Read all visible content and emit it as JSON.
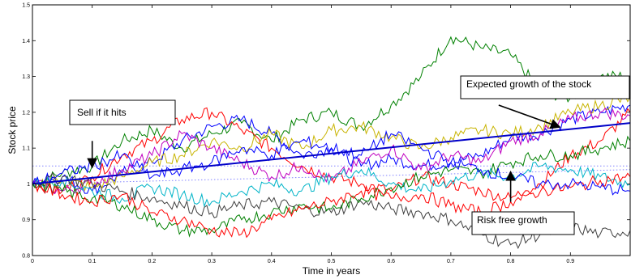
{
  "chart_data": {
    "type": "line",
    "xlabel": "Time in years",
    "ylabel": "Stock price",
    "xlim": [
      0,
      1
    ],
    "ylim": [
      0.8,
      1.5
    ],
    "xticks": [
      "0",
      "0.1",
      "0.2",
      "0.3",
      "0.4",
      "0.5",
      "0.6",
      "0.7",
      "0.8",
      "0.9"
    ],
    "yticks": [
      "0.8",
      "0.9",
      "1",
      "1.1",
      "1.2",
      "1.3",
      "1.4",
      "1.5"
    ],
    "grid": false,
    "series": [
      {
        "color": "#008000",
        "x": [
          0,
          0.05,
          0.1,
          0.15,
          0.2,
          0.25,
          0.3,
          0.35,
          0.4,
          0.45,
          0.5,
          0.55,
          0.6,
          0.65,
          0.7,
          0.75,
          0.8,
          0.85,
          0.9,
          0.95,
          1.0
        ],
        "values": [
          1.0,
          1.03,
          1.05,
          1.12,
          1.15,
          1.1,
          1.14,
          1.17,
          1.12,
          1.18,
          1.2,
          1.16,
          1.22,
          1.3,
          1.41,
          1.38,
          1.36,
          1.26,
          1.24,
          1.3,
          1.3
        ]
      },
      {
        "color": "#0000ff",
        "x": [
          0,
          0.05,
          0.1,
          0.15,
          0.2,
          0.25,
          0.3,
          0.35,
          0.4,
          0.45,
          0.5,
          0.55,
          0.6,
          0.65,
          0.7,
          0.75,
          0.8,
          0.85,
          0.9,
          0.95,
          1.0
        ],
        "values": [
          1.0,
          1.02,
          0.98,
          1.03,
          1.06,
          1.12,
          1.16,
          1.18,
          1.14,
          1.08,
          1.1,
          1.05,
          1.07,
          1.05,
          1.06,
          1.08,
          1.13,
          1.14,
          1.18,
          1.2,
          1.22
        ]
      },
      {
        "color": "#ff0000",
        "x": [
          0,
          0.05,
          0.1,
          0.15,
          0.2,
          0.25,
          0.3,
          0.35,
          0.4,
          0.45,
          0.5,
          0.55,
          0.6,
          0.65,
          0.7,
          0.75,
          0.8,
          0.85,
          0.9,
          0.95,
          1.0
        ],
        "values": [
          1.0,
          0.98,
          1.02,
          1.08,
          1.12,
          1.18,
          1.2,
          1.15,
          1.1,
          1.05,
          1.02,
          1.0,
          0.98,
          1.02,
          1.0,
          0.98,
          0.96,
          1.0,
          1.08,
          1.12,
          1.2
        ]
      },
      {
        "color": "#c8b400",
        "x": [
          0,
          0.05,
          0.1,
          0.15,
          0.2,
          0.25,
          0.3,
          0.35,
          0.4,
          0.45,
          0.5,
          0.55,
          0.6,
          0.65,
          0.7,
          0.75,
          0.8,
          0.85,
          0.9,
          0.95,
          1.0
        ],
        "values": [
          1.0,
          1.01,
          0.99,
          1.02,
          1.06,
          1.08,
          1.12,
          1.1,
          1.14,
          1.1,
          1.15,
          1.16,
          1.13,
          1.1,
          1.13,
          1.15,
          1.14,
          1.16,
          1.2,
          1.22,
          1.24
        ]
      },
      {
        "color": "#c000c0",
        "x": [
          0,
          0.05,
          0.1,
          0.15,
          0.2,
          0.25,
          0.3,
          0.35,
          0.4,
          0.45,
          0.5,
          0.55,
          0.6,
          0.65,
          0.7,
          0.75,
          0.8,
          0.85,
          0.9,
          0.95,
          1.0
        ],
        "values": [
          1.0,
          0.98,
          1.0,
          1.04,
          1.08,
          1.14,
          1.1,
          1.06,
          1.02,
          1.05,
          1.01,
          1.06,
          1.1,
          1.04,
          1.08,
          1.06,
          1.12,
          1.14,
          1.18,
          1.2,
          1.19
        ]
      },
      {
        "color": "#00b4c8",
        "x": [
          0,
          0.05,
          0.1,
          0.15,
          0.2,
          0.25,
          0.3,
          0.35,
          0.4,
          0.45,
          0.5,
          0.55,
          0.6,
          0.65,
          0.7,
          0.75,
          0.8,
          0.85,
          0.9,
          0.95,
          1.0
        ],
        "values": [
          1.0,
          1.01,
          0.98,
          0.96,
          0.99,
          0.97,
          0.95,
          0.98,
          1.0,
          0.98,
          1.02,
          1.04,
          1.0,
          0.98,
          1.01,
          1.03,
          1.02,
          1.05,
          1.04,
          1.02,
          1.0
        ]
      },
      {
        "color": "#404040",
        "x": [
          0,
          0.05,
          0.1,
          0.15,
          0.2,
          0.25,
          0.3,
          0.35,
          0.4,
          0.45,
          0.5,
          0.55,
          0.6,
          0.65,
          0.7,
          0.75,
          0.8,
          0.85,
          0.9,
          0.95,
          1.0
        ],
        "values": [
          1.0,
          1.02,
          1.0,
          0.98,
          0.96,
          0.94,
          0.92,
          0.94,
          0.95,
          0.93,
          0.92,
          0.95,
          0.93,
          0.92,
          0.9,
          0.86,
          0.83,
          0.86,
          0.88,
          0.86,
          0.87
        ]
      },
      {
        "color": "#008000",
        "x": [
          0,
          0.05,
          0.1,
          0.15,
          0.2,
          0.25,
          0.3,
          0.35,
          0.4,
          0.45,
          0.5,
          0.55,
          0.6,
          0.65,
          0.7,
          0.75,
          0.8,
          0.85,
          0.9,
          0.95,
          1.0
        ],
        "values": [
          1.0,
          0.98,
          0.96,
          0.94,
          0.9,
          0.87,
          0.87,
          0.9,
          0.92,
          0.94,
          0.93,
          0.96,
          0.99,
          1.02,
          1.04,
          1.03,
          1.06,
          1.08,
          1.08,
          1.1,
          1.12
        ]
      },
      {
        "color": "#ff0000",
        "x": [
          0,
          0.05,
          0.1,
          0.15,
          0.2,
          0.25,
          0.3,
          0.35,
          0.4,
          0.45,
          0.5,
          0.55,
          0.6,
          0.65,
          0.7,
          0.75,
          0.8,
          0.85,
          0.9,
          0.95,
          1.0
        ],
        "values": [
          1.0,
          0.97,
          0.95,
          0.97,
          0.92,
          0.9,
          0.87,
          0.86,
          0.9,
          0.93,
          0.95,
          0.98,
          0.96,
          0.97,
          0.94,
          0.92,
          0.95,
          0.98,
          0.99,
          1.01,
          1.02
        ]
      },
      {
        "color": "#0000ff",
        "x": [
          0,
          0.05,
          0.1,
          0.15,
          0.2,
          0.25,
          0.3,
          0.35,
          0.4,
          0.45,
          0.5,
          0.55,
          0.6,
          0.65,
          0.7,
          0.75,
          0.8,
          0.85,
          0.9,
          0.95,
          1.0
        ],
        "values": [
          1.0,
          1.03,
          1.05,
          1.08,
          1.02,
          1.04,
          1.06,
          1.1,
          1.08,
          1.12,
          1.1,
          1.08,
          1.14,
          1.1,
          1.06,
          1.04,
          1.02,
          1.0,
          1.0,
          0.99,
          0.98
        ]
      }
    ],
    "expected_growth": {
      "color": "#0000c8",
      "x": [
        0,
        1
      ],
      "values": [
        1.0,
        1.17
      ]
    },
    "reference_lines": [
      {
        "color": "#8080ff",
        "style": "dotted",
        "value": 1.05
      },
      {
        "color": "#8080ff",
        "style": "dotted",
        "x": [
          0,
          1
        ],
        "values": [
          1.0,
          1.04
        ]
      }
    ],
    "annotations": [
      {
        "id": "sell",
        "text": "Sell if it hits",
        "arrow_from": [
          0.1,
          1.12
        ],
        "arrow_to": [
          0.1,
          1.05
        ]
      },
      {
        "id": "expected",
        "text": "Expected growth of the stock",
        "arrow_from": [
          0.78,
          1.22
        ],
        "arrow_to": [
          0.88,
          1.16
        ]
      },
      {
        "id": "riskfree",
        "text": "Risk free growth",
        "arrow_from": [
          0.8,
          0.95
        ],
        "arrow_to": [
          0.8,
          1.03
        ]
      }
    ]
  }
}
